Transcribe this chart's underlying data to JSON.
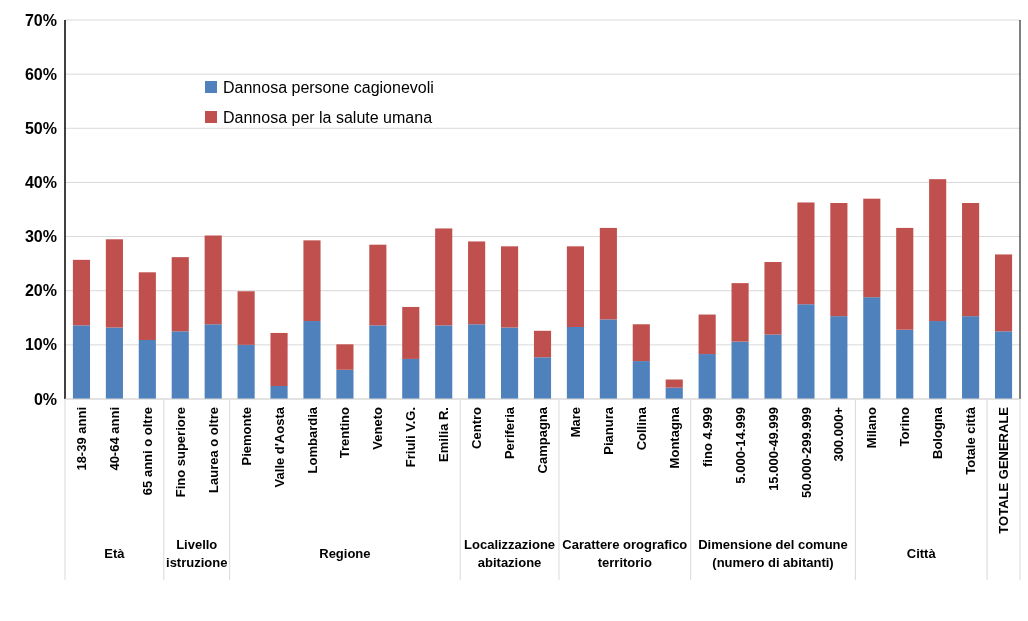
{
  "chart_data": {
    "type": "bar",
    "stacked": true,
    "categories": [
      "18-39 anni",
      "40-64 anni",
      "65 anni o oltre",
      "Fino superiore",
      "Laurea o oltre",
      "Piemonte",
      "Valle d'Aosta",
      "Lombardia",
      "Trentino",
      "Veneto",
      "Friuli V.G.",
      "Emilia R.",
      "Centro",
      "Periferia",
      "Campagna",
      "Mare",
      "Pianura",
      "Collina",
      "Montagna",
      "fino 4.999",
      "5.000-14.999",
      "15.000-49.999",
      "50.000-299.999",
      "300.000+",
      "Milano",
      "Torino",
      "Bologna",
      "Totale città",
      "TOTALE GENERALE"
    ],
    "series": [
      {
        "name": "Dannosa persone cagionevoli",
        "color": "#4f81bd",
        "values": [
          13.6,
          13.2,
          10.9,
          12.5,
          13.8,
          10.0,
          2.4,
          14.4,
          5.4,
          13.6,
          7.4,
          13.6,
          13.8,
          13.2,
          7.7,
          13.3,
          14.7,
          7.0,
          2.1,
          8.3,
          10.6,
          11.9,
          17.5,
          15.3,
          18.8,
          12.8,
          14.4,
          15.3,
          12.5
        ]
      },
      {
        "name": "Dannosa per la salute umana",
        "color": "#c0504d",
        "values": [
          12.1,
          16.3,
          12.5,
          13.7,
          16.4,
          9.9,
          9.8,
          14.9,
          4.7,
          14.9,
          9.6,
          17.9,
          15.3,
          15.0,
          4.9,
          14.9,
          16.9,
          6.8,
          1.5,
          7.3,
          10.8,
          13.4,
          18.8,
          20.9,
          18.2,
          18.8,
          26.2,
          20.9,
          14.2
        ]
      }
    ],
    "ylim": [
      0,
      70
    ],
    "yticks": [
      {
        "value": 0,
        "label": "0%"
      },
      {
        "value": 10,
        "label": "10%"
      },
      {
        "value": 20,
        "label": "20%"
      },
      {
        "value": 30,
        "label": "30%"
      },
      {
        "value": 40,
        "label": "40%"
      },
      {
        "value": 50,
        "label": "50%"
      },
      {
        "value": 60,
        "label": "60%"
      },
      {
        "value": 70,
        "label": "70%"
      }
    ],
    "grid": "y",
    "legend": "top left",
    "annotations": [
      "Età",
      "Livello istruzione",
      "Regione",
      "Localizzazione abitazione",
      "Carattere orografico territorio",
      "Dimensione del comune (numero di abitanti)",
      "Città"
    ]
  }
}
